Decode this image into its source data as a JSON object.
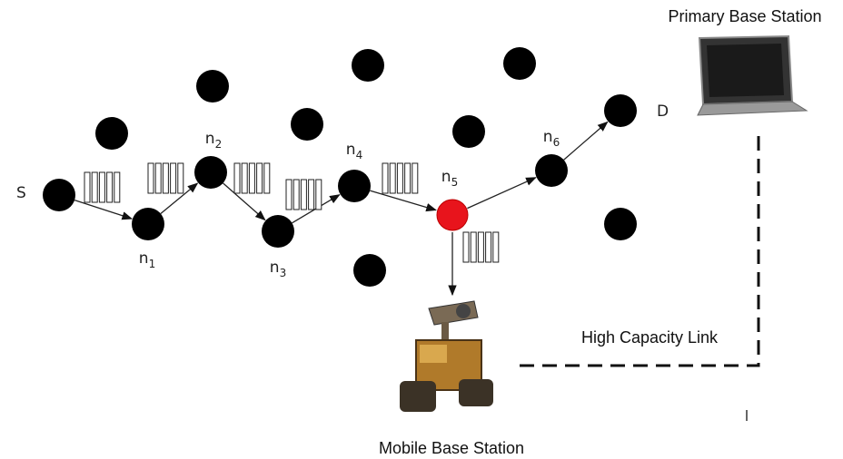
{
  "labels": {
    "primary_base_station": "Primary Base Station",
    "high_capacity_link": "High Capacity Link",
    "mobile_base_station": "Mobile Base Station"
  },
  "nodes": [
    {
      "name": "S"
    },
    {
      "name": "n",
      "index": "1"
    },
    {
      "name": "n",
      "index": "2"
    },
    {
      "name": "n",
      "index": "3"
    },
    {
      "name": "n",
      "index": "4"
    },
    {
      "name": "n",
      "index": "5"
    },
    {
      "name": "n",
      "index": "6"
    },
    {
      "name": "D"
    }
  ]
}
